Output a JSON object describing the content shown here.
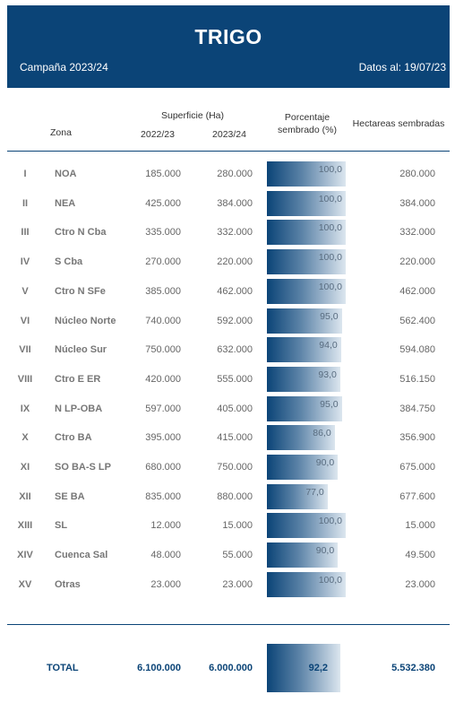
{
  "header": {
    "title": "TRIGO",
    "campaign": "Campaña 2023/24",
    "date": "Datos al: 19/07/23",
    "color": "#0b4477"
  },
  "columns": {
    "zona": "Zona",
    "superficie": "Superficie (Ha)",
    "y2022": "2022/23",
    "y2023": "2023/24",
    "porcentaje_line1": "Porcentaje",
    "porcentaje_line2": "sembrado (%)",
    "hectareas": "Hectareas sembradas"
  },
  "rows": [
    {
      "roman": "I",
      "zone": "NOA",
      "s2022": "185.000",
      "s2023": "280.000",
      "pct": "100,0",
      "pct_value": 100.0,
      "ha": "280.000"
    },
    {
      "roman": "II",
      "zone": "NEA",
      "s2022": "425.000",
      "s2023": "384.000",
      "pct": "100,0",
      "pct_value": 100.0,
      "ha": "384.000"
    },
    {
      "roman": "III",
      "zone": "Ctro N Cba",
      "s2022": "335.000",
      "s2023": "332.000",
      "pct": "100,0",
      "pct_value": 100.0,
      "ha": "332.000"
    },
    {
      "roman": "IV",
      "zone": "S Cba",
      "s2022": "270.000",
      "s2023": "220.000",
      "pct": "100,0",
      "pct_value": 100.0,
      "ha": "220.000"
    },
    {
      "roman": "V",
      "zone": "Ctro N SFe",
      "s2022": "385.000",
      "s2023": "462.000",
      "pct": "100,0",
      "pct_value": 100.0,
      "ha": "462.000"
    },
    {
      "roman": "VI",
      "zone": "Núcleo Norte",
      "s2022": "740.000",
      "s2023": "592.000",
      "pct": "95,0",
      "pct_value": 95.0,
      "ha": "562.400"
    },
    {
      "roman": "VII",
      "zone": "Núcleo Sur",
      "s2022": "750.000",
      "s2023": "632.000",
      "pct": "94,0",
      "pct_value": 94.0,
      "ha": "594.080"
    },
    {
      "roman": "VIII",
      "zone": "Ctro E ER",
      "s2022": "420.000",
      "s2023": "555.000",
      "pct": "93,0",
      "pct_value": 93.0,
      "ha": "516.150"
    },
    {
      "roman": "IX",
      "zone": "N LP-OBA",
      "s2022": "597.000",
      "s2023": "405.000",
      "pct": "95,0",
      "pct_value": 95.0,
      "ha": "384.750"
    },
    {
      "roman": "X",
      "zone": "Ctro BA",
      "s2022": "395.000",
      "s2023": "415.000",
      "pct": "86,0",
      "pct_value": 86.0,
      "ha": "356.900"
    },
    {
      "roman": "XI",
      "zone": "SO BA-S LP",
      "s2022": "680.000",
      "s2023": "750.000",
      "pct": "90,0",
      "pct_value": 90.0,
      "ha": "675.000"
    },
    {
      "roman": "XII",
      "zone": "SE BA",
      "s2022": "835.000",
      "s2023": "880.000",
      "pct": "77,0",
      "pct_value": 77.0,
      "ha": "677.600"
    },
    {
      "roman": "XIII",
      "zone": "SL",
      "s2022": "12.000",
      "s2023": "15.000",
      "pct": "100,0",
      "pct_value": 100.0,
      "ha": "15.000"
    },
    {
      "roman": "XIV",
      "zone": "Cuenca Sal",
      "s2022": "48.000",
      "s2023": "55.000",
      "pct": "90,0",
      "pct_value": 90.0,
      "ha": "49.500"
    },
    {
      "roman": "XV",
      "zone": "Otras",
      "s2022": "23.000",
      "s2023": "23.000",
      "pct": "100,0",
      "pct_value": 100.0,
      "ha": "23.000"
    }
  ],
  "total": {
    "label": "TOTAL",
    "s2022": "6.100.000",
    "s2023": "6.000.000",
    "pct": "92,2",
    "ha": "5.532.380"
  }
}
